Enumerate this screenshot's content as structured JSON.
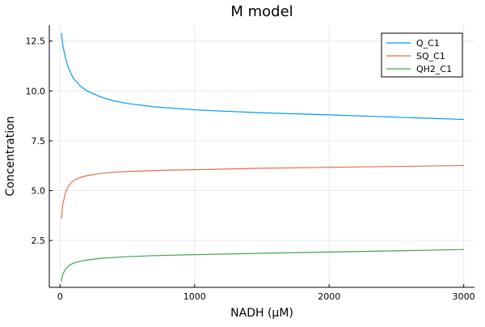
{
  "chart_data": {
    "type": "line",
    "title": "M model",
    "xlabel": "NADH (μM)",
    "ylabel": "Concentration",
    "xlim": [
      -80,
      3080
    ],
    "ylim": [
      0.15,
      13.3
    ],
    "xticks": [
      0,
      1000,
      2000,
      3000
    ],
    "xtick_labels": [
      "0",
      "1000",
      "2000",
      "3000"
    ],
    "yticks": [
      2.5,
      5.0,
      7.5,
      10.0,
      12.5
    ],
    "ytick_labels": [
      "2.5",
      "5.0",
      "7.5",
      "10.0",
      "12.5"
    ],
    "grid": true,
    "legend_position": "top-right",
    "series": [
      {
        "name": "Q_C1",
        "color": "#009AFA",
        "x": [
          10,
          20,
          40,
          60,
          80,
          100,
          150,
          200,
          300,
          400,
          500,
          700,
          1000,
          1500,
          2000,
          2500,
          3000
        ],
        "y": [
          12.9,
          12.3,
          11.65,
          11.2,
          10.88,
          10.62,
          10.25,
          10.0,
          9.7,
          9.5,
          9.37,
          9.2,
          9.05,
          8.9,
          8.8,
          8.68,
          8.57
        ]
      },
      {
        "name": "SQ_C1",
        "color": "#E36F47",
        "x": [
          10,
          20,
          40,
          60,
          80,
          100,
          150,
          200,
          300,
          400,
          500,
          700,
          1000,
          1500,
          2000,
          2500,
          3000
        ],
        "y": [
          3.6,
          4.3,
          4.9,
          5.2,
          5.38,
          5.5,
          5.66,
          5.75,
          5.86,
          5.92,
          5.96,
          6.01,
          6.05,
          6.12,
          6.17,
          6.21,
          6.26
        ]
      },
      {
        "name": "QH2_C1",
        "color": "#3EA44E",
        "x": [
          10,
          20,
          40,
          60,
          80,
          100,
          150,
          200,
          300,
          400,
          500,
          700,
          1000,
          1500,
          2000,
          2500,
          3000
        ],
        "y": [
          0.45,
          0.8,
          1.06,
          1.2,
          1.3,
          1.36,
          1.46,
          1.52,
          1.6,
          1.65,
          1.69,
          1.74,
          1.79,
          1.86,
          1.92,
          1.98,
          2.05
        ]
      }
    ]
  }
}
